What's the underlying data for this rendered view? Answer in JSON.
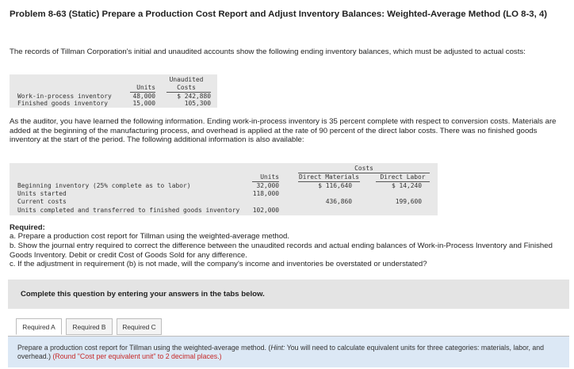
{
  "problem": {
    "title": "Problem 8-63 (Static) Prepare a Production Cost Report and Adjust Inventory Balances: Weighted-Average Method (LO 8-3, 4)",
    "intro": "The records of Tillman Corporation's initial and unaudited accounts show the following ending inventory balances, which must be adjusted to actual costs:"
  },
  "table1": {
    "header_units": "Units",
    "header_unaudited_1": "Unaudited",
    "header_unaudited_2": "Costs",
    "rows": [
      {
        "label": "Work-in-process inventory",
        "units": "48,000",
        "cost": "$ 242,880"
      },
      {
        "label": "Finished goods inventory",
        "units": "15,000",
        "cost": "105,300"
      }
    ]
  },
  "audit_text": "As the auditor, you have learned the following information. Ending work-in-process inventory is 35 percent complete with respect to conversion costs. Materials are added at the beginning of the manufacturing process, and overhead is applied at the rate of 90 percent of the direct labor costs. There was no finished goods inventory at the start of the period. The following additional information is also available:",
  "table2": {
    "costs_header": "Costs",
    "header_units": "Units",
    "header_dm": "Direct Materials",
    "header_dl": "Direct Labor",
    "rows": [
      {
        "label": "Beginning inventory (25% complete as to labor)",
        "units": "32,000",
        "dm": "$ 116,640",
        "dl": "$ 14,240"
      },
      {
        "label": "Units started",
        "units": "118,000",
        "dm": "",
        "dl": ""
      },
      {
        "label": "Current costs",
        "units": "",
        "dm": "436,860",
        "dl": "199,600"
      },
      {
        "label": "Units completed and transferred to finished goods inventory",
        "units": "102,000",
        "dm": "",
        "dl": ""
      }
    ]
  },
  "required": {
    "heading": "Required:",
    "a": "a. Prepare a production cost report for Tillman using the weighted-average method.",
    "b": "b. Show the journal entry required to correct the difference between the unaudited records and actual ending balances of Work-in-Process Inventory and Finished Goods Inventory. Debit or credit Cost of Goods Sold for any difference.",
    "c": "c. If the adjustment in requirement (b) is not made, will the company's income and inventories be overstated or understated?"
  },
  "panel_text": "Complete this question by entering your answers in the tabs below.",
  "tabs": [
    "Required A",
    "Required B",
    "Required C"
  ],
  "instructions": {
    "main": "Prepare a production cost report for Tillman using the weighted-average method. (",
    "hint_label": "Hint:",
    "hint": " You will need to calculate equivalent units for three categories: materials, labor, and overhead.) ",
    "round": "(Round \"Cost per equivalent unit\" to 2 decimal places.)"
  }
}
